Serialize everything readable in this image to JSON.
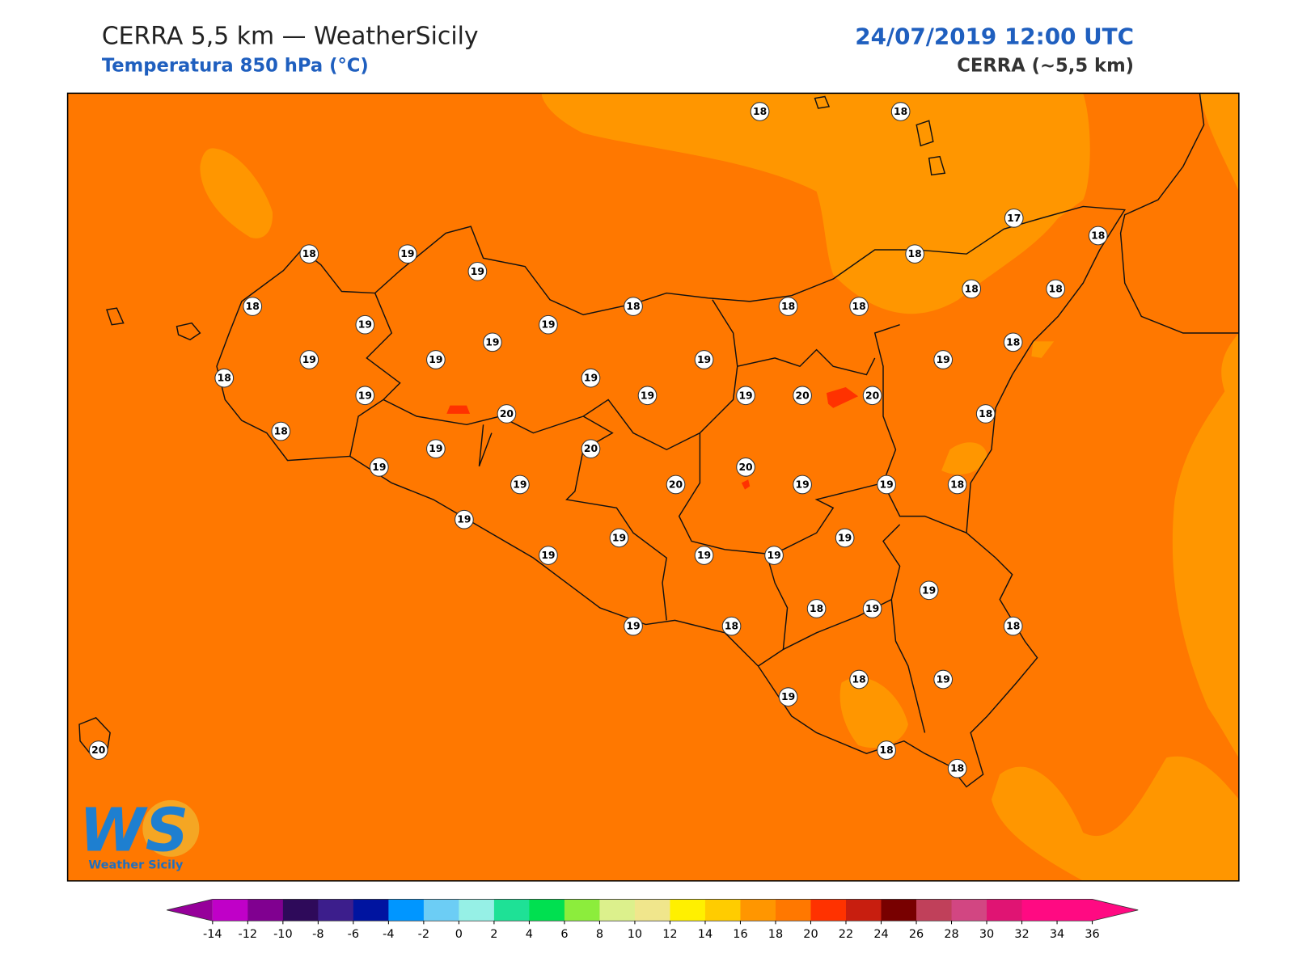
{
  "header": {
    "title": "CERRA 5,5 km — WeatherSicily",
    "subtitle": "Temperatura 850 hPa (°C)",
    "date": "24/07/2019 12:00 UTC",
    "model": "CERRA (~5,5 km)"
  },
  "logo": {
    "mark": "WS",
    "name": "Weather Sicily"
  },
  "stations": [
    18,
    18,
    17,
    18,
    18,
    18,
    18,
    18,
    19,
    18,
    18,
    19,
    20,
    20,
    18,
    18,
    19,
    19,
    18,
    19,
    19,
    19,
    19,
    18,
    18,
    19,
    19,
    19,
    18,
    19,
    19,
    19,
    20,
    18,
    19,
    20,
    20,
    19,
    19,
    20,
    19,
    19,
    19,
    19,
    19,
    19,
    19,
    19,
    18,
    19,
    18,
    19,
    18,
    19,
    18,
    19,
    18,
    18,
    20
  ],
  "colorbar": {
    "lim": [
      -14,
      36
    ],
    "ticks": [
      -14,
      -12,
      -10,
      -8,
      -6,
      -4,
      -2,
      0,
      2,
      4,
      6,
      8,
      10,
      12,
      14,
      16,
      18,
      20,
      22,
      24,
      26,
      28,
      30,
      32,
      34,
      36
    ],
    "colors": [
      "#c000c8",
      "#800090",
      "#2e0a5a",
      "#3c1e8c",
      "#0014a0",
      "#0096ff",
      "#6ccdf5",
      "#96f0e6",
      "#1ee196",
      "#00e050",
      "#8ced3c",
      "#dcf08c",
      "#f0e68c",
      "#fff000",
      "#ffcc00",
      "#ff9600",
      "#ff7800",
      "#ff3200",
      "#c81e0f",
      "#780000",
      "#c0405a",
      "#d24682",
      "#e01473",
      "#ff0a82",
      "#ff0a82"
    ],
    "under_color": "#96009a",
    "over_color": "#ff0a82"
  }
}
